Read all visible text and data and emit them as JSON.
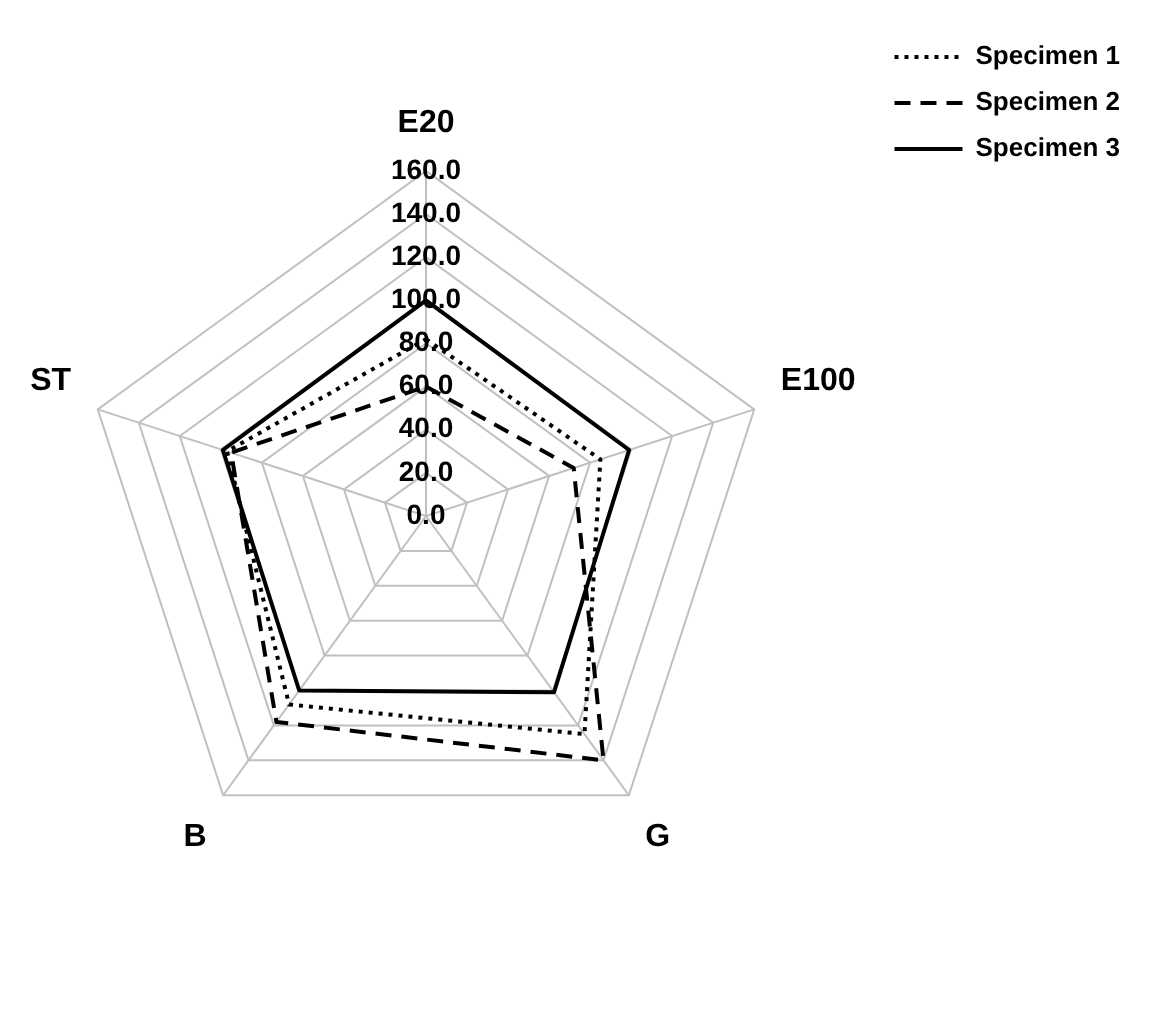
{
  "chart_data": {
    "type": "radar",
    "categories": [
      "E20",
      "E100",
      "G",
      "B",
      "ST"
    ],
    "series": [
      {
        "name": "Specimen 1",
        "color": "#000000",
        "line_style": "dotted",
        "values": [
          82,
          85,
          125,
          108,
          97
        ]
      },
      {
        "name": "Specimen 2",
        "color": "#000000",
        "line_style": "dashed",
        "values": [
          60,
          72,
          140,
          118,
          95
        ]
      },
      {
        "name": "Specimen 3",
        "color": "#000000",
        "line_style": "solid",
        "values": [
          100,
          99,
          101,
          100,
          99
        ]
      }
    ],
    "ylim": [
      0,
      160
    ],
    "yticks": [
      {
        "value": 0,
        "label": "0.0"
      },
      {
        "value": 20,
        "label": "20.0"
      },
      {
        "value": 40,
        "label": "40.0"
      },
      {
        "value": 60,
        "label": "60.0"
      },
      {
        "value": 80,
        "label": "80.0"
      },
      {
        "value": 100,
        "label": "100.0"
      },
      {
        "value": 120,
        "label": "120.0"
      },
      {
        "value": 140,
        "label": "140.0"
      },
      {
        "value": 160,
        "label": "160.0"
      }
    ],
    "grid": true,
    "legend": "top right",
    "marker": "none"
  }
}
